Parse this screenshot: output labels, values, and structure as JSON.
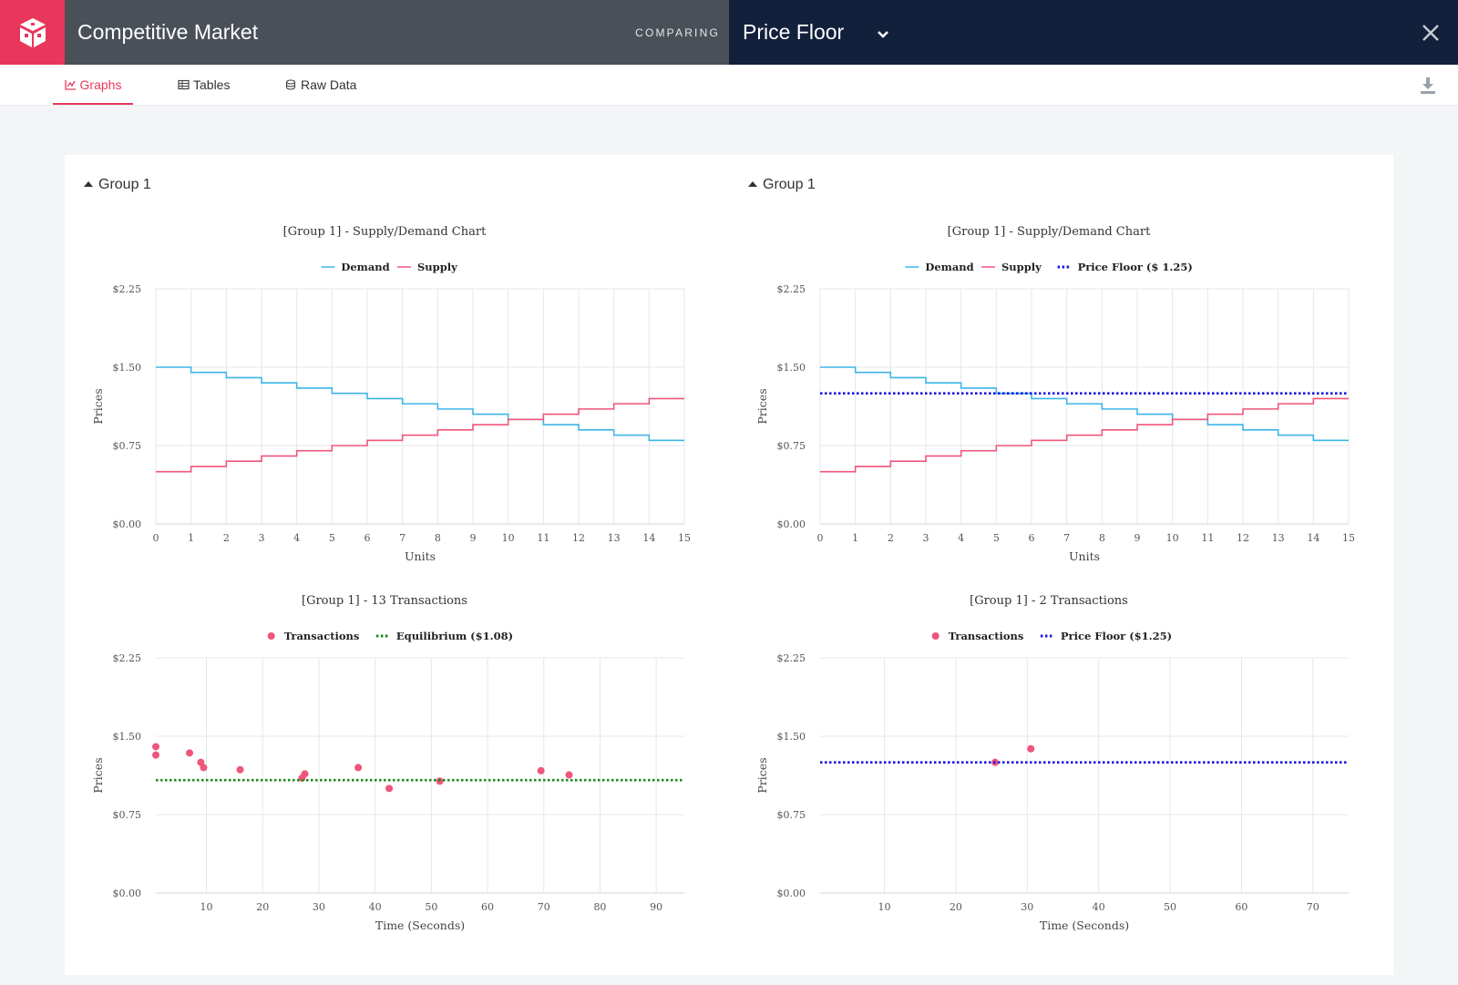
{
  "header": {
    "app_title": "Competitive Market",
    "comparing_label": "COMPARING",
    "compare_title": "Price Floor",
    "brand_color": "#e8375a"
  },
  "tabs": [
    {
      "label": "Graphs",
      "icon": "line-chart-icon",
      "active": true
    },
    {
      "label": "Tables",
      "icon": "table-icon",
      "active": false
    },
    {
      "label": "Raw Data",
      "icon": "database-icon",
      "active": false
    }
  ],
  "panels": [
    {
      "group_label": "Group 1"
    },
    {
      "group_label": "Group 1"
    }
  ],
  "chart_data": [
    {
      "type": "line",
      "title": "[Group 1] - Supply/Demand Chart",
      "xlabel": "Units",
      "ylabel": "Prices",
      "xlim": [
        0,
        15
      ],
      "ylim": [
        0,
        2.25
      ],
      "xticks": [
        "0",
        "1",
        "2",
        "3",
        "4",
        "5",
        "6",
        "7",
        "8",
        "9",
        "10",
        "11",
        "12",
        "13",
        "14",
        "15"
      ],
      "yticks": [
        "$0.00",
        "$0.75",
        "$1.50",
        "$2.25"
      ],
      "grid": true,
      "legend": "top-center",
      "series": [
        {
          "name": "Demand",
          "style": "step",
          "color": "#3db5e6",
          "values": [
            1.5,
            1.45,
            1.4,
            1.35,
            1.3,
            1.25,
            1.2,
            1.15,
            1.1,
            1.05,
            1.0,
            0.95,
            0.9,
            0.85,
            0.8
          ]
        },
        {
          "name": "Supply",
          "style": "step",
          "color": "#f0557a",
          "values": [
            0.5,
            0.55,
            0.6,
            0.65,
            0.7,
            0.75,
            0.8,
            0.85,
            0.9,
            0.95,
            1.0,
            1.05,
            1.1,
            1.15,
            1.2
          ]
        }
      ]
    },
    {
      "type": "line",
      "title": "[Group 1] - Supply/Demand Chart",
      "xlabel": "Units",
      "ylabel": "Prices",
      "xlim": [
        0,
        15
      ],
      "ylim": [
        0,
        2.25
      ],
      "xticks": [
        "0",
        "1",
        "2",
        "3",
        "4",
        "5",
        "6",
        "7",
        "8",
        "9",
        "10",
        "11",
        "12",
        "13",
        "14",
        "15"
      ],
      "yticks": [
        "$0.00",
        "$0.75",
        "$1.50",
        "$2.25"
      ],
      "grid": true,
      "legend": "top-center",
      "series": [
        {
          "name": "Demand",
          "style": "step",
          "color": "#3db5e6",
          "values": [
            1.5,
            1.45,
            1.4,
            1.35,
            1.3,
            1.25,
            1.2,
            1.15,
            1.1,
            1.05,
            1.0,
            0.95,
            0.9,
            0.85,
            0.8
          ]
        },
        {
          "name": "Supply",
          "style": "step",
          "color": "#f0557a",
          "values": [
            0.5,
            0.55,
            0.6,
            0.65,
            0.7,
            0.75,
            0.8,
            0.85,
            0.9,
            0.95,
            1.0,
            1.05,
            1.1,
            1.15,
            1.2
          ]
        },
        {
          "name": "Price Floor ($ 1.25)",
          "style": "hline",
          "color": "#1515e0",
          "value": 1.25
        }
      ]
    },
    {
      "type": "scatter",
      "title": "[Group 1] - 13 Transactions",
      "xlabel": "Time (Seconds)",
      "ylabel": "Prices",
      "xlim": [
        1,
        95
      ],
      "ylim": [
        0,
        2.25
      ],
      "xticks": [
        "10",
        "20",
        "30",
        "40",
        "50",
        "60",
        "70",
        "80",
        "90"
      ],
      "yticks": [
        "$0.00",
        "$0.75",
        "$1.50",
        "$2.25"
      ],
      "grid": true,
      "legend": "top-center",
      "series": [
        {
          "name": "Transactions",
          "style": "points",
          "color": "#f0557a",
          "points": [
            [
              1,
              1.4
            ],
            [
              1,
              1.32
            ],
            [
              7,
              1.34
            ],
            [
              9,
              1.25
            ],
            [
              9.5,
              1.2
            ],
            [
              16,
              1.18
            ],
            [
              27,
              1.1
            ],
            [
              27.5,
              1.14
            ],
            [
              37,
              1.2
            ],
            [
              42.5,
              1.0
            ],
            [
              51.5,
              1.07
            ],
            [
              69.5,
              1.17
            ],
            [
              74.5,
              1.13
            ]
          ]
        },
        {
          "name": "Equilibrium ($1.08)",
          "style": "hline",
          "color": "#1a8a1a",
          "value": 1.08
        }
      ]
    },
    {
      "type": "scatter",
      "title": "[Group 1] - 2 Transactions",
      "xlabel": "Time (Seconds)",
      "ylabel": "Prices",
      "xlim": [
        1,
        75
      ],
      "ylim": [
        0,
        2.25
      ],
      "xticks": [
        "10",
        "20",
        "30",
        "40",
        "50",
        "60",
        "70"
      ],
      "yticks": [
        "$0.00",
        "$0.75",
        "$1.50",
        "$2.25"
      ],
      "grid": true,
      "legend": "top-center",
      "series": [
        {
          "name": "Transactions",
          "style": "points",
          "color": "#f0557a",
          "points": [
            [
              25.5,
              1.25
            ],
            [
              30.5,
              1.38
            ]
          ]
        },
        {
          "name": "Price Floor ($1.25)",
          "style": "hline",
          "color": "#1515e0",
          "value": 1.25
        }
      ]
    }
  ]
}
